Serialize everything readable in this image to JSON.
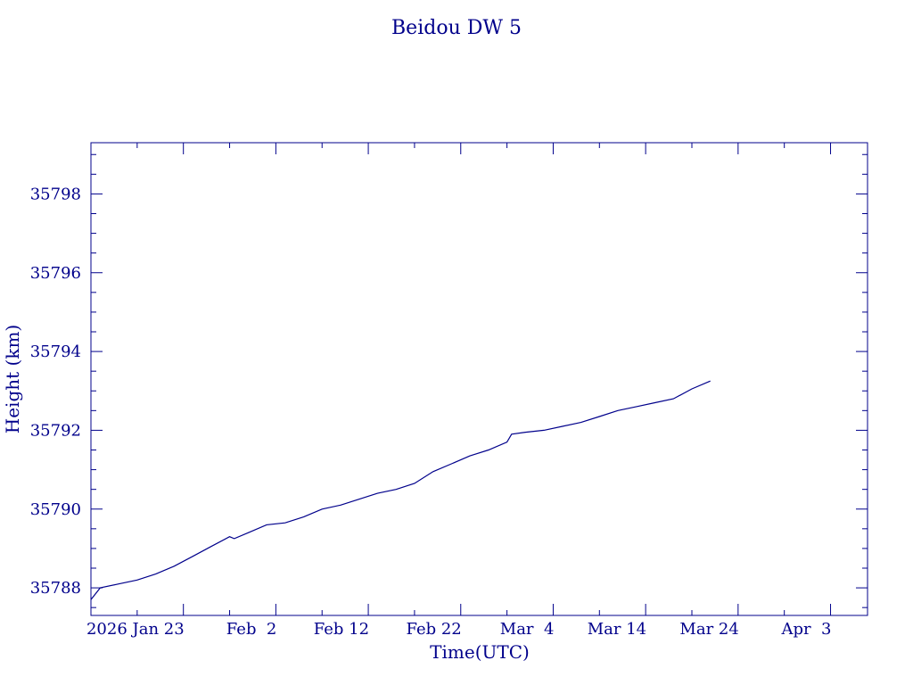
{
  "chart_data": {
    "type": "line",
    "title": "Beidou DW 5",
    "xlabel": "Time(UTC)",
    "ylabel": "Height (km)",
    "x_ticks": [
      {
        "date": "2026-01-23",
        "label": "2026 Jan 23"
      },
      {
        "date": "2026-02-02",
        "label": "Feb  2"
      },
      {
        "date": "2026-02-12",
        "label": "Feb 12"
      },
      {
        "date": "2026-02-22",
        "label": "Feb 22"
      },
      {
        "date": "2026-03-04",
        "label": "Mar  4"
      },
      {
        "date": "2026-03-14",
        "label": "Mar 14"
      },
      {
        "date": "2026-03-24",
        "label": "Mar 24"
      },
      {
        "date": "2026-04-03",
        "label": "Apr  3"
      }
    ],
    "y_ticks": [
      35788,
      35790,
      35792,
      35794,
      35796,
      35798
    ],
    "xlim": [
      "2026-01-13",
      "2026-04-07"
    ],
    "ylim": [
      35787.3,
      35799.3
    ],
    "grid": false,
    "series": [
      {
        "points": [
          [
            "2026-01-13",
            35787.7
          ],
          [
            "2026-01-14",
            35788.0
          ],
          [
            "2026-01-16",
            35788.1
          ],
          [
            "2026-01-18",
            35788.2
          ],
          [
            "2026-01-20",
            35788.35
          ],
          [
            "2026-01-22",
            35788.55
          ],
          [
            "2026-01-24",
            35788.8
          ],
          [
            "2026-01-26",
            35789.05
          ],
          [
            "2026-01-28",
            35789.3
          ],
          [
            "2026-01-28T12:00",
            35789.25
          ],
          [
            "2026-01-30",
            35789.4
          ],
          [
            "2026-02-01",
            35789.6
          ],
          [
            "2026-02-03",
            35789.65
          ],
          [
            "2026-02-05",
            35789.8
          ],
          [
            "2026-02-07",
            35790.0
          ],
          [
            "2026-02-09",
            35790.1
          ],
          [
            "2026-02-11",
            35790.25
          ],
          [
            "2026-02-13",
            35790.4
          ],
          [
            "2026-02-15",
            35790.5
          ],
          [
            "2026-02-17",
            35790.65
          ],
          [
            "2026-02-19",
            35790.95
          ],
          [
            "2026-02-21",
            35791.15
          ],
          [
            "2026-02-23",
            35791.35
          ],
          [
            "2026-02-25",
            35791.5
          ],
          [
            "2026-02-27",
            35791.7
          ],
          [
            "2026-02-27T12:00",
            35791.9
          ],
          [
            "2026-03-01",
            35791.95
          ],
          [
            "2026-03-03",
            35792.0
          ],
          [
            "2026-03-05",
            35792.1
          ],
          [
            "2026-03-07",
            35792.2
          ],
          [
            "2026-03-09",
            35792.35
          ],
          [
            "2026-03-11",
            35792.5
          ],
          [
            "2026-03-13",
            35792.6
          ],
          [
            "2026-03-15",
            35792.7
          ],
          [
            "2026-03-17",
            35792.8
          ],
          [
            "2026-03-19",
            35793.05
          ],
          [
            "2026-03-21",
            35793.25
          ]
        ]
      }
    ]
  }
}
